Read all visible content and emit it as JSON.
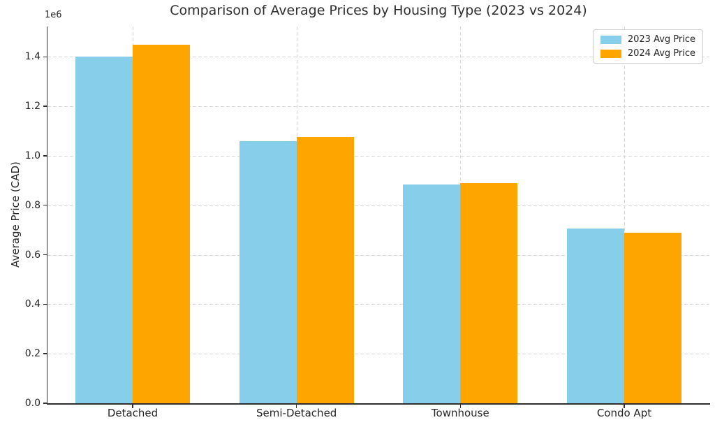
{
  "chart_data": {
    "type": "bar",
    "title": "Comparison of Average Prices by Housing Type (2023 vs 2024)",
    "xlabel": "",
    "ylabel": "Average Price (CAD)",
    "y_offset_label": "1e6",
    "categories": [
      "Detached",
      "Semi-Detached",
      "Townhouse",
      "Condo Apt"
    ],
    "series": [
      {
        "name": "2023 Avg Price",
        "color": "#87CEEB",
        "values": [
          1400000,
          1060000,
          885000,
          705000
        ]
      },
      {
        "name": "2024 Avg Price",
        "color": "#FFA500",
        "values": [
          1450000,
          1075000,
          890000,
          690000
        ]
      }
    ],
    "ylim": [
      0,
      1522500
    ],
    "yticks": [
      0,
      200000,
      400000,
      600000,
      800000,
      1000000,
      1200000,
      1400000
    ],
    "ytick_labels": [
      "0.0",
      "0.2",
      "0.4",
      "0.6",
      "0.8",
      "1.0",
      "1.2",
      "1.4"
    ],
    "grid": true,
    "grid_style": "dashed",
    "legend_position": "upper right",
    "bar_width_fraction": 0.35
  }
}
